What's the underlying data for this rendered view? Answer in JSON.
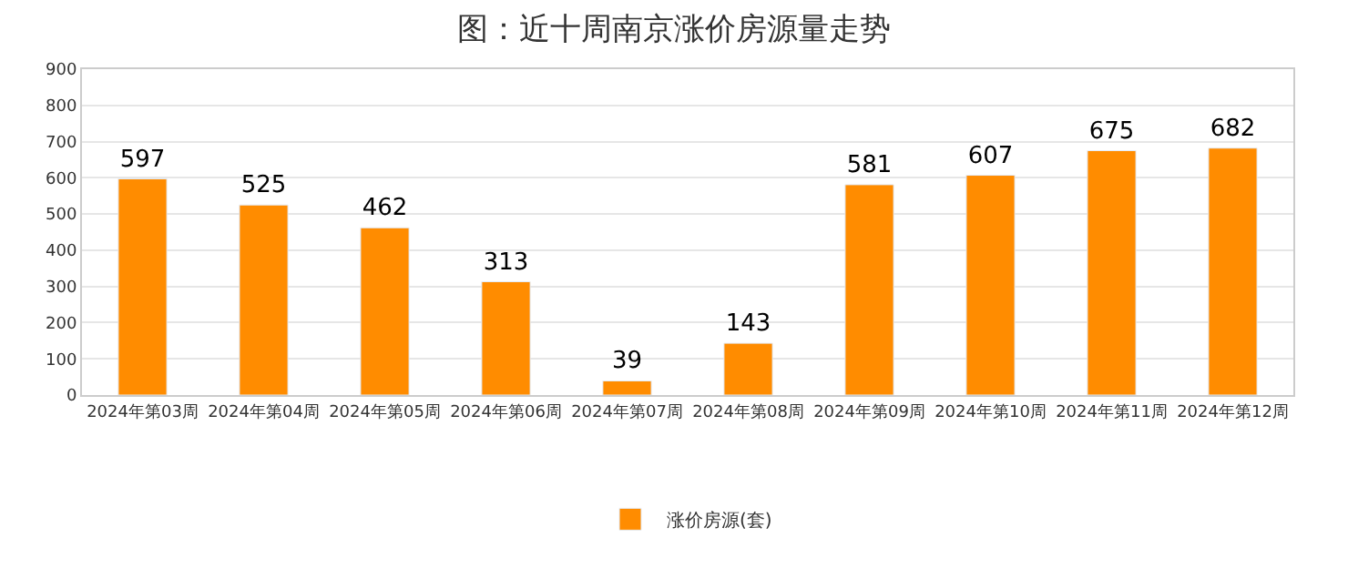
{
  "chart_data": {
    "type": "bar",
    "title": "图：近十周南京涨价房源量走势",
    "categories": [
      "2024年第03周",
      "2024年第04周",
      "2024年第05周",
      "2024年第06周",
      "2024年第07周",
      "2024年第08周",
      "2024年第09周",
      "2024年第10周",
      "2024年第11周",
      "2024年第12周"
    ],
    "series": [
      {
        "name": "涨价房源(套)",
        "color": "#ff8c00",
        "values": [
          597,
          525,
          462,
          313,
          39,
          143,
          581,
          607,
          675,
          682
        ]
      }
    ],
    "ylim": [
      0,
      900
    ],
    "yticks": [
      0,
      100,
      200,
      300,
      400,
      500,
      600,
      700,
      800,
      900
    ],
    "grid": "y",
    "legend": "bottom",
    "data_labels": true
  }
}
